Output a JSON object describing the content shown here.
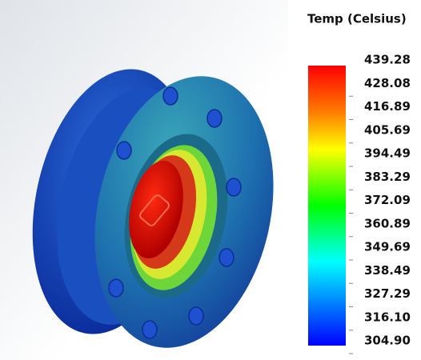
{
  "legend": {
    "title": "Temp (Celsius)",
    "labels": [
      "439.28",
      "428.08",
      "416.89",
      "405.69",
      "394.49",
      "383.29",
      "372.09",
      "360.89",
      "349.69",
      "338.49",
      "327.29",
      "316.10",
      "304.90"
    ]
  }
}
